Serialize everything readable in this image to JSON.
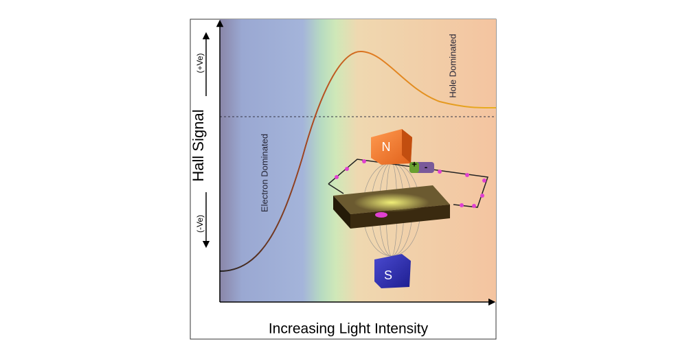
{
  "axes": {
    "y_label": "Hall Signal",
    "y_positive": "(+Ve)",
    "y_negative": "(-Ve)",
    "x_label": "Increasing Light Intensity"
  },
  "annotations": {
    "left": "Electron Dominated",
    "right": "Hole Dominated"
  },
  "magnet": {
    "north": "N",
    "south": "S"
  },
  "battery": {
    "positive": "+",
    "negative": "-"
  }
}
